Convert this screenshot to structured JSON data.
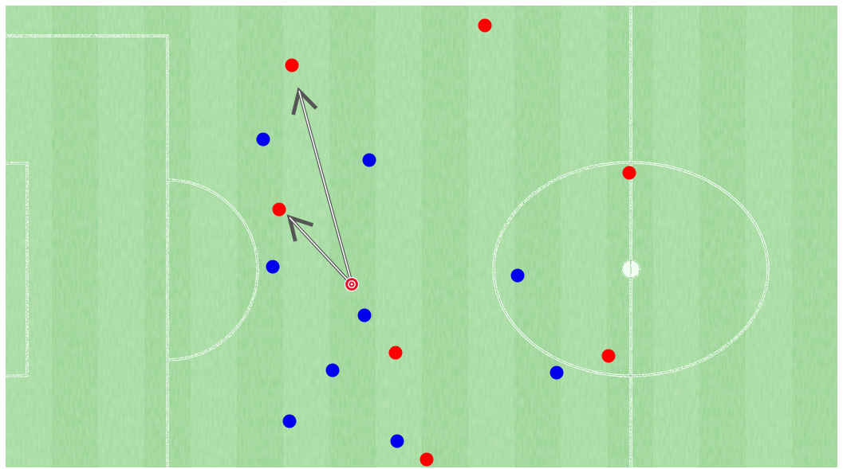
{
  "colors": {
    "grass_light": "#9fd99a",
    "grass_dark": "#8ccd88",
    "pitch_line": "#f2fff0",
    "pitch_line_shadow": "#2f8f3a",
    "team_red": "#ff0000",
    "team_blue": "#0000ee",
    "ball_fill": "#e8112d",
    "arrow": "#555555"
  },
  "pitch": {
    "orientation": "left-goal",
    "markings": [
      "penalty-area",
      "goal-area",
      "penalty-arc",
      "halfway-line",
      "centre-circle",
      "centre-spot"
    ]
  },
  "ball_carrier": {
    "team": "red",
    "icon": "ball-with-player-icon"
  },
  "pass_options": [
    {
      "target": "red-player-top-forward"
    },
    {
      "target": "red-player-left-forward"
    }
  ],
  "players": {
    "red": [
      {
        "id": "red-player-top-forward"
      },
      {
        "id": "red-player-wide-top"
      },
      {
        "id": "red-player-left-forward"
      },
      {
        "id": "red-player-centre-circle-top"
      },
      {
        "id": "red-player-midfield"
      },
      {
        "id": "red-player-centre-circle-bottom"
      },
      {
        "id": "red-player-bottom"
      }
    ],
    "blue": [
      {
        "id": "blue-player-1"
      },
      {
        "id": "blue-player-2"
      },
      {
        "id": "blue-player-3"
      },
      {
        "id": "blue-player-4"
      },
      {
        "id": "blue-player-5"
      },
      {
        "id": "blue-player-6"
      },
      {
        "id": "blue-player-7"
      },
      {
        "id": "blue-player-8"
      },
      {
        "id": "blue-player-9"
      }
    ]
  }
}
